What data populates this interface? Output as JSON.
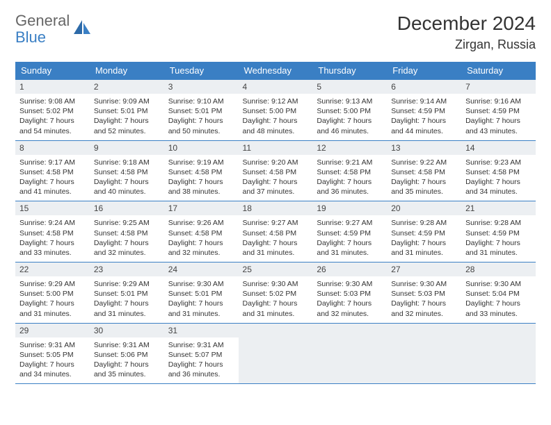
{
  "logo": {
    "part1": "General",
    "part2": "Blue"
  },
  "title": "December 2024",
  "location": "Zirgan, Russia",
  "colors": {
    "header_bg": "#3a7fc4",
    "header_text": "#ffffff",
    "daynum_bg": "#eceff2",
    "border": "#3a7fc4",
    "logo_gray": "#666666",
    "logo_blue": "#3a7fc4"
  },
  "weekdays": [
    "Sunday",
    "Monday",
    "Tuesday",
    "Wednesday",
    "Thursday",
    "Friday",
    "Saturday"
  ],
  "days": [
    {
      "n": "1",
      "sr": "Sunrise: 9:08 AM",
      "ss": "Sunset: 5:02 PM",
      "dl": "Daylight: 7 hours and 54 minutes."
    },
    {
      "n": "2",
      "sr": "Sunrise: 9:09 AM",
      "ss": "Sunset: 5:01 PM",
      "dl": "Daylight: 7 hours and 52 minutes."
    },
    {
      "n": "3",
      "sr": "Sunrise: 9:10 AM",
      "ss": "Sunset: 5:01 PM",
      "dl": "Daylight: 7 hours and 50 minutes."
    },
    {
      "n": "4",
      "sr": "Sunrise: 9:12 AM",
      "ss": "Sunset: 5:00 PM",
      "dl": "Daylight: 7 hours and 48 minutes."
    },
    {
      "n": "5",
      "sr": "Sunrise: 9:13 AM",
      "ss": "Sunset: 5:00 PM",
      "dl": "Daylight: 7 hours and 46 minutes."
    },
    {
      "n": "6",
      "sr": "Sunrise: 9:14 AM",
      "ss": "Sunset: 4:59 PM",
      "dl": "Daylight: 7 hours and 44 minutes."
    },
    {
      "n": "7",
      "sr": "Sunrise: 9:16 AM",
      "ss": "Sunset: 4:59 PM",
      "dl": "Daylight: 7 hours and 43 minutes."
    },
    {
      "n": "8",
      "sr": "Sunrise: 9:17 AM",
      "ss": "Sunset: 4:58 PM",
      "dl": "Daylight: 7 hours and 41 minutes."
    },
    {
      "n": "9",
      "sr": "Sunrise: 9:18 AM",
      "ss": "Sunset: 4:58 PM",
      "dl": "Daylight: 7 hours and 40 minutes."
    },
    {
      "n": "10",
      "sr": "Sunrise: 9:19 AM",
      "ss": "Sunset: 4:58 PM",
      "dl": "Daylight: 7 hours and 38 minutes."
    },
    {
      "n": "11",
      "sr": "Sunrise: 9:20 AM",
      "ss": "Sunset: 4:58 PM",
      "dl": "Daylight: 7 hours and 37 minutes."
    },
    {
      "n": "12",
      "sr": "Sunrise: 9:21 AM",
      "ss": "Sunset: 4:58 PM",
      "dl": "Daylight: 7 hours and 36 minutes."
    },
    {
      "n": "13",
      "sr": "Sunrise: 9:22 AM",
      "ss": "Sunset: 4:58 PM",
      "dl": "Daylight: 7 hours and 35 minutes."
    },
    {
      "n": "14",
      "sr": "Sunrise: 9:23 AM",
      "ss": "Sunset: 4:58 PM",
      "dl": "Daylight: 7 hours and 34 minutes."
    },
    {
      "n": "15",
      "sr": "Sunrise: 9:24 AM",
      "ss": "Sunset: 4:58 PM",
      "dl": "Daylight: 7 hours and 33 minutes."
    },
    {
      "n": "16",
      "sr": "Sunrise: 9:25 AM",
      "ss": "Sunset: 4:58 PM",
      "dl": "Daylight: 7 hours and 32 minutes."
    },
    {
      "n": "17",
      "sr": "Sunrise: 9:26 AM",
      "ss": "Sunset: 4:58 PM",
      "dl": "Daylight: 7 hours and 32 minutes."
    },
    {
      "n": "18",
      "sr": "Sunrise: 9:27 AM",
      "ss": "Sunset: 4:58 PM",
      "dl": "Daylight: 7 hours and 31 minutes."
    },
    {
      "n": "19",
      "sr": "Sunrise: 9:27 AM",
      "ss": "Sunset: 4:59 PM",
      "dl": "Daylight: 7 hours and 31 minutes."
    },
    {
      "n": "20",
      "sr": "Sunrise: 9:28 AM",
      "ss": "Sunset: 4:59 PM",
      "dl": "Daylight: 7 hours and 31 minutes."
    },
    {
      "n": "21",
      "sr": "Sunrise: 9:28 AM",
      "ss": "Sunset: 4:59 PM",
      "dl": "Daylight: 7 hours and 31 minutes."
    },
    {
      "n": "22",
      "sr": "Sunrise: 9:29 AM",
      "ss": "Sunset: 5:00 PM",
      "dl": "Daylight: 7 hours and 31 minutes."
    },
    {
      "n": "23",
      "sr": "Sunrise: 9:29 AM",
      "ss": "Sunset: 5:01 PM",
      "dl": "Daylight: 7 hours and 31 minutes."
    },
    {
      "n": "24",
      "sr": "Sunrise: 9:30 AM",
      "ss": "Sunset: 5:01 PM",
      "dl": "Daylight: 7 hours and 31 minutes."
    },
    {
      "n": "25",
      "sr": "Sunrise: 9:30 AM",
      "ss": "Sunset: 5:02 PM",
      "dl": "Daylight: 7 hours and 31 minutes."
    },
    {
      "n": "26",
      "sr": "Sunrise: 9:30 AM",
      "ss": "Sunset: 5:03 PM",
      "dl": "Daylight: 7 hours and 32 minutes."
    },
    {
      "n": "27",
      "sr": "Sunrise: 9:30 AM",
      "ss": "Sunset: 5:03 PM",
      "dl": "Daylight: 7 hours and 32 minutes."
    },
    {
      "n": "28",
      "sr": "Sunrise: 9:30 AM",
      "ss": "Sunset: 5:04 PM",
      "dl": "Daylight: 7 hours and 33 minutes."
    },
    {
      "n": "29",
      "sr": "Sunrise: 9:31 AM",
      "ss": "Sunset: 5:05 PM",
      "dl": "Daylight: 7 hours and 34 minutes."
    },
    {
      "n": "30",
      "sr": "Sunrise: 9:31 AM",
      "ss": "Sunset: 5:06 PM",
      "dl": "Daylight: 7 hours and 35 minutes."
    },
    {
      "n": "31",
      "sr": "Sunrise: 9:31 AM",
      "ss": "Sunset: 5:07 PM",
      "dl": "Daylight: 7 hours and 36 minutes."
    }
  ]
}
